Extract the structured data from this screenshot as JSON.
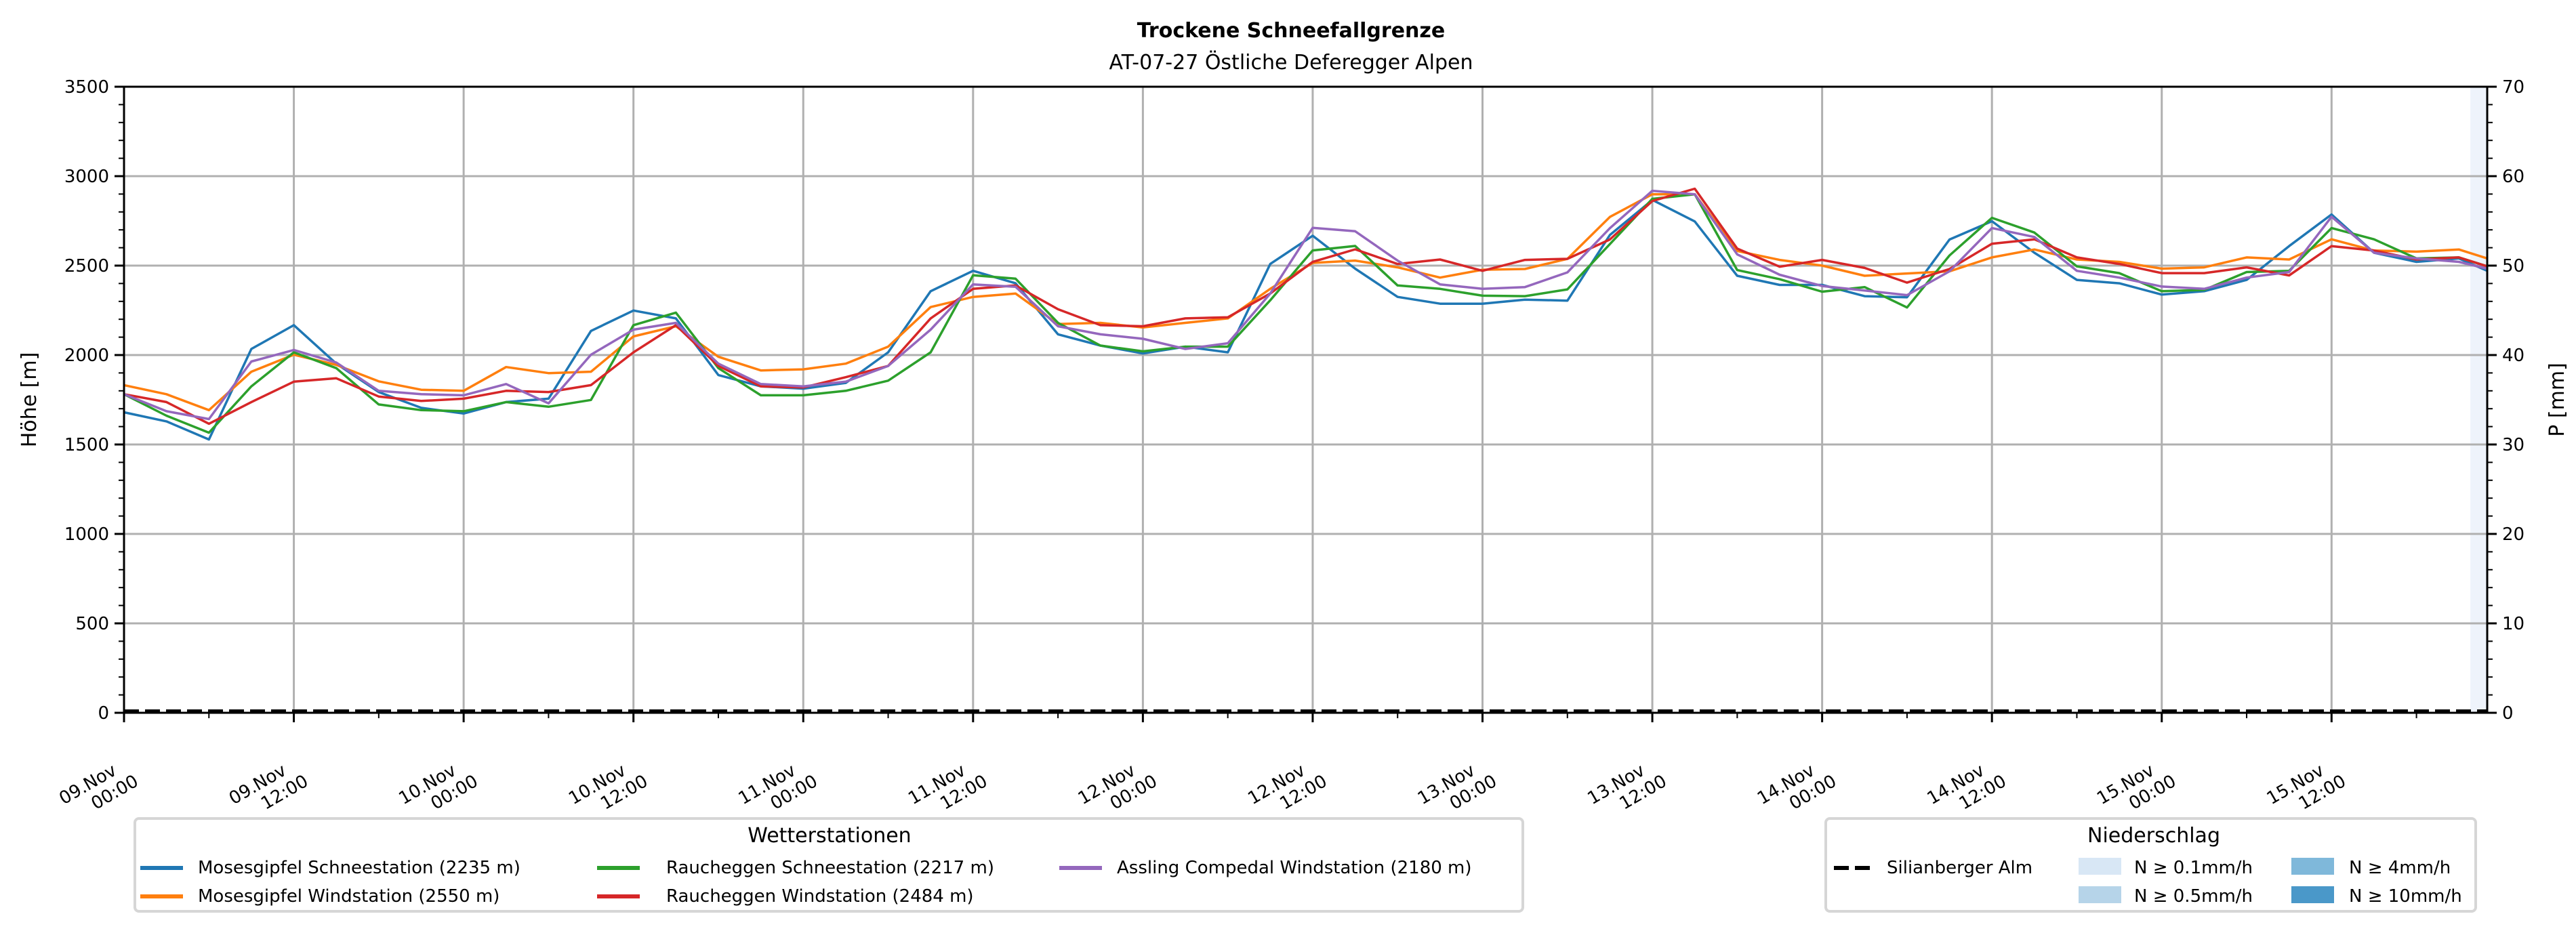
{
  "chart_data": {
    "type": "line",
    "title": "Trockene Schneefallgrenze",
    "subtitle": "AT-07-27 Östliche Deferegger Alpen",
    "ylabel": "Höhe [m]",
    "ylabel_right": "P [mm]",
    "ylim": [
      0,
      3500
    ],
    "ylim_right": [
      0,
      70
    ],
    "yticks": [
      "0",
      "500",
      "1000",
      "1500",
      "2000",
      "2500",
      "3000",
      "3500"
    ],
    "yticks_right": [
      "0",
      "10",
      "20",
      "30",
      "40",
      "50",
      "60",
      "70"
    ],
    "x_unit": "hours since 09.Nov 00:00",
    "xlim": [
      0,
      167
    ],
    "xticks": [
      {
        "h": 0,
        "date": "09.Nov",
        "time": "00:00"
      },
      {
        "h": 12,
        "date": "09.Nov",
        "time": "12:00"
      },
      {
        "h": 24,
        "date": "10.Nov",
        "time": "00:00"
      },
      {
        "h": 36,
        "date": "10.Nov",
        "time": "12:00"
      },
      {
        "h": 48,
        "date": "11.Nov",
        "time": "00:00"
      },
      {
        "h": 60,
        "date": "11.Nov",
        "time": "12:00"
      },
      {
        "h": 72,
        "date": "12.Nov",
        "time": "00:00"
      },
      {
        "h": 84,
        "date": "12.Nov",
        "time": "12:00"
      },
      {
        "h": 96,
        "date": "13.Nov",
        "time": "00:00"
      },
      {
        "h": 108,
        "date": "13.Nov",
        "time": "12:00"
      },
      {
        "h": 120,
        "date": "14.Nov",
        "time": "00:00"
      },
      {
        "h": 132,
        "date": "14.Nov",
        "time": "12:00"
      },
      {
        "h": 144,
        "date": "15.Nov",
        "time": "00:00"
      },
      {
        "h": 156,
        "date": "15.Nov",
        "time": "12:00"
      }
    ],
    "grid": true,
    "x": [
      0,
      3,
      6,
      9,
      12,
      15,
      18,
      21,
      24,
      27,
      30,
      33,
      36,
      39,
      42,
      45,
      48,
      51,
      54,
      57,
      60,
      63,
      66,
      69,
      72,
      75,
      78,
      81,
      84,
      87,
      90,
      93,
      96,
      99,
      102,
      105,
      108,
      111,
      114,
      117,
      120,
      123,
      126,
      129,
      132,
      135,
      138,
      141,
      144,
      147,
      150,
      153,
      156,
      159,
      162,
      165,
      167
    ],
    "series": [
      {
        "name": "Mosesgipfel Schneestation (2235 m)",
        "color": "#1f77b4",
        "values": [
          1680,
          1629,
          1528,
          2034,
          2167,
          1952,
          1793,
          1705,
          1673,
          1737,
          1756,
          2135,
          2249,
          2205,
          1888,
          1825,
          1812,
          1844,
          2015,
          2357,
          2471,
          2401,
          2116,
          2053,
          2009,
          2047,
          2015,
          2509,
          2667,
          2483,
          2325,
          2287,
          2287,
          2310,
          2304,
          2671,
          2867,
          2747,
          2443,
          2392,
          2392,
          2329,
          2323,
          2646,
          2748,
          2572,
          2420,
          2401,
          2338,
          2357,
          2420,
          2609,
          2786,
          2572,
          2521,
          2540,
          2471
        ]
      },
      {
        "name": "Mosesgipfel Windstation (2550 m)",
        "color": "#ff7f0e",
        "values": [
          1832,
          1781,
          1692,
          1907,
          2002,
          1945,
          1853,
          1806,
          1800,
          1933,
          1899,
          1907,
          2104,
          2161,
          1990,
          1914,
          1920,
          1952,
          2047,
          2268,
          2325,
          2344,
          2173,
          2180,
          2154,
          2180,
          2205,
          2370,
          2515,
          2528,
          2490,
          2433,
          2477,
          2481,
          2538,
          2772,
          2899,
          2899,
          2582,
          2532,
          2500,
          2443,
          2456,
          2468,
          2546,
          2590,
          2534,
          2521,
          2483,
          2490,
          2546,
          2534,
          2647,
          2584,
          2578,
          2590,
          2540
        ]
      },
      {
        "name": "Raucheggen Schneestation (2217 m)",
        "color": "#2ca02c",
        "values": [
          1781,
          1661,
          1566,
          1825,
          2015,
          1927,
          1724,
          1692,
          1686,
          1737,
          1711,
          1749,
          2167,
          2237,
          1927,
          1775,
          1775,
          1800,
          1857,
          2015,
          2446,
          2427,
          2180,
          2053,
          2021,
          2047,
          2047,
          2306,
          2585,
          2610,
          2389,
          2370,
          2332,
          2329,
          2367,
          2620,
          2873,
          2899,
          2475,
          2424,
          2354,
          2380,
          2266,
          2557,
          2767,
          2685,
          2496,
          2458,
          2357,
          2364,
          2464,
          2471,
          2710,
          2647,
          2540,
          2546,
          2496
        ]
      },
      {
        "name": "Raucheggen Windstation (2484 m)",
        "color": "#d62728",
        "values": [
          1781,
          1737,
          1616,
          1737,
          1851,
          1870,
          1768,
          1743,
          1756,
          1800,
          1793,
          1832,
          2015,
          2167,
          1939,
          1825,
          1819,
          1876,
          1939,
          2205,
          2370,
          2389,
          2256,
          2167,
          2161,
          2205,
          2211,
          2344,
          2521,
          2591,
          2509,
          2534,
          2471,
          2532,
          2538,
          2646,
          2861,
          2930,
          2595,
          2494,
          2532,
          2487,
          2405,
          2481,
          2622,
          2647,
          2546,
          2509,
          2458,
          2458,
          2490,
          2445,
          2609,
          2584,
          2534,
          2546,
          2496
        ]
      },
      {
        "name": "Assling Compedal Windstation (2180 m)",
        "color": "#9467bd",
        "values": [
          1781,
          1686,
          1642,
          1964,
          2028,
          1958,
          1800,
          1781,
          1775,
          1838,
          1730,
          2002,
          2142,
          2180,
          1952,
          1838,
          1825,
          1851,
          1939,
          2142,
          2395,
          2382,
          2161,
          2116,
          2091,
          2034,
          2066,
          2344,
          2711,
          2692,
          2528,
          2395,
          2370,
          2380,
          2462,
          2709,
          2918,
          2899,
          2563,
          2449,
          2386,
          2361,
          2335,
          2468,
          2710,
          2660,
          2471,
          2433,
          2383,
          2370,
          2433,
          2464,
          2773,
          2572,
          2540,
          2521,
          2483
        ]
      }
    ],
    "reference_line": {
      "name": "Silianberger Alm",
      "color": "#000000",
      "style": "dashed",
      "value": 0
    },
    "precipitation_bands": [
      {
        "from_h": 166,
        "to_h": 167,
        "class": "N ≥ 0.1mm/h"
      }
    ],
    "legend_stations": {
      "title": "Wetterstationen",
      "position": "bottom-left",
      "items": [
        "Mosesgipfel Schneestation (2235 m)",
        "Mosesgipfel Windstation (2550 m)",
        "Raucheggen Schneestation (2217 m)",
        "Raucheggen Windstation (2484 m)",
        "Assling Compedal Windstation (2180 m)"
      ]
    },
    "legend_precip": {
      "title": "Niederschlag",
      "position": "bottom-right",
      "line_item": "Silianberger Alm",
      "classes": [
        {
          "label": "N ≥ 0.1mm/h",
          "color": "#d8e7f5"
        },
        {
          "label": "N ≥ 0.5mm/h",
          "color": "#b6d4e9"
        },
        {
          "label": "N ≥ 4mm/h",
          "color": "#7fb8da"
        },
        {
          "label": "N ≥ 10mm/h",
          "color": "#4a98c9"
        }
      ]
    },
    "colors": {
      "grid": "#b0b0b0",
      "axis": "#000000",
      "band": "#eef3fb"
    }
  }
}
